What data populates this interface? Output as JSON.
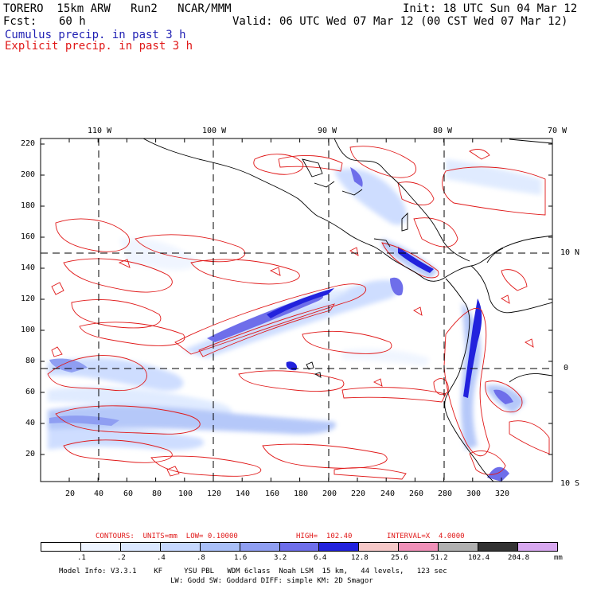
{
  "header": {
    "model": "TORERO  15km ARW   Run2   NCAR/MMM",
    "init": "Init: 18 UTC Sun 04 Mar 12",
    "fcst_label": "Fcst:",
    "fcst_value": "60 h",
    "valid": "Valid: 06 UTC Wed 07 Mar 12 (00 CST Wed 07 Mar 12)",
    "cumulus": "Cumulus precip. in past 3 h",
    "explicit": "Explicit precip. in past 3 h"
  },
  "map": {
    "lon_labels": [
      "110 W",
      "100 W",
      "90 W",
      "80 W",
      "70 W"
    ],
    "lat_labels": [
      "10 N",
      "0",
      "10 S"
    ],
    "y_ticks": [
      "220",
      "200",
      "180",
      "160",
      "140",
      "120",
      "100",
      "80",
      "60",
      "40",
      "20"
    ],
    "x_ticks": [
      "20",
      "40",
      "60",
      "80",
      "100",
      "120",
      "140",
      "160",
      "180",
      "200",
      "220",
      "240",
      "260",
      "280",
      "300",
      "320"
    ]
  },
  "contours_info": {
    "units": "CONTOURS:  UNITS=mm  LOW= 0.10000",
    "high": "HIGH=  102.40",
    "interval": "INTERVAL=X  4.0000"
  },
  "colorbar": {
    "unit": "mm",
    "labels": [
      ".1",
      ".2",
      ".4",
      ".8",
      "1.6",
      "3.2",
      "6.4",
      "12.8",
      "25.6",
      "51.2",
      "102.4",
      "204.8"
    ],
    "colors": [
      "#ffffff",
      "#eef4ff",
      "#dbe8ff",
      "#c6d8ff",
      "#a9bff8",
      "#8f9ef2",
      "#6e6eea",
      "#2222dd",
      "#f6c8c8",
      "#f090b8",
      "#b0b0b0",
      "#333333",
      "#d8a8f0"
    ]
  },
  "footer": {
    "line1": "Model Info: V3.3.1    KF     YSU PBL   WDM 6class  Noah LSM  15 km,   44 levels,   123 sec",
    "line2": "LW: Godd SW: Goddard DIFF: simple KM: 2D Smagor"
  }
}
